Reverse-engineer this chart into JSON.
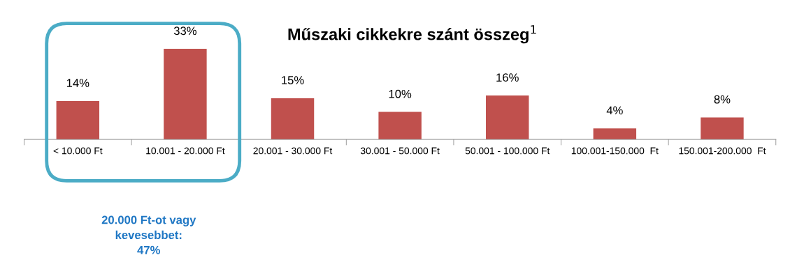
{
  "chart_data": {
    "type": "bar",
    "title": "Műszaki cikkekre szánt összeg$^{1}$",
    "categories": [
      "< 10.000 Ft",
      "10.001 - 20.000 Ft",
      "20.001 - 30.000 Ft",
      "30.001 - 50.000 Ft",
      "50.001 - 100.000 Ft",
      "100.001-150.000  Ft",
      "150.001-200.000  Ft"
    ],
    "values": [
      14,
      33,
      15,
      10,
      16,
      4,
      8
    ],
    "value_labels": [
      "14%",
      "33%",
      "15%",
      "10%",
      "16%",
      "4%",
      "8%"
    ],
    "color": "#c0504d",
    "annotations": [
      "20.000 Ft-ot vagy\nkevesebbet:\n47%"
    ],
    "grid": false,
    "legend": false
  }
}
